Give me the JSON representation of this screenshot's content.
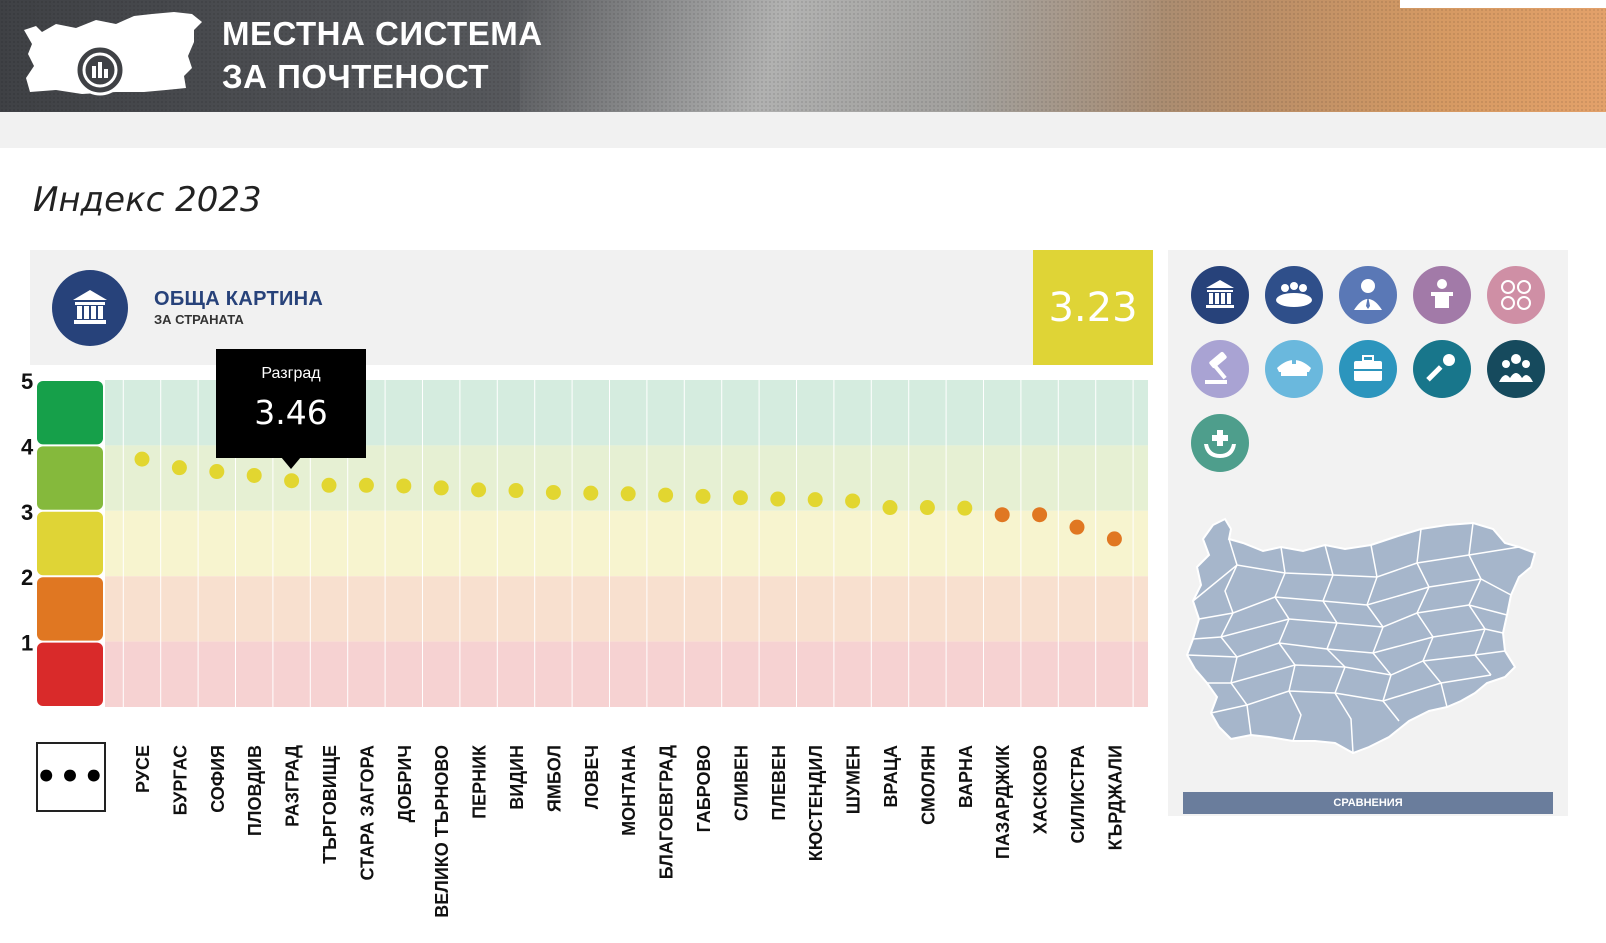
{
  "header": {
    "title_line1": "МЕСТНА СИСТЕМА",
    "title_line2": "ЗА ПОЧТЕНОСТ"
  },
  "page_title": "Индекс 2023",
  "overview": {
    "title": "ОБЩА КАРТИНА",
    "subtitle": "ЗА СТРАНАТА",
    "score": "3.23",
    "icon": "institution-icon"
  },
  "tooltip": {
    "name": "Разград",
    "value": "3.46"
  },
  "colors": {
    "green": "#16a04a",
    "lightgreen": "#85b93c",
    "yellow": "#dfd436",
    "orange": "#e07722",
    "red": "#d92a2a",
    "navy": "#27427a"
  },
  "chart_data": {
    "type": "scatter",
    "ylim": [
      0,
      5
    ],
    "y_ticks": [
      "5",
      "4",
      "3",
      "2",
      "1"
    ],
    "categories": [
      "РУСЕ",
      "БУРГАС",
      "СОФИЯ",
      "ПЛОВДИВ",
      "РАЗГРАД",
      "ТЪРГОВИЩЕ",
      "СТАРА ЗАГОРА",
      "ДОБРИЧ",
      "ВЕЛИКО ТЪРНОВО",
      "ПЕРНИК",
      "ВИДИН",
      "ЯМБОЛ",
      "ЛОВЕЧ",
      "МОНТАНА",
      "БЛАГОЕВГРАД",
      "ГАБРОВО",
      "СЛИВЕН",
      "ПЛЕВЕН",
      "КЮСТЕНДИЛ",
      "ШУМЕН",
      "ВРАЦА",
      "СМОЛЯН",
      "ВАРНА",
      "ПАЗАРДЖИК",
      "ХАСКОВО",
      "СИЛИСТРА",
      "КЪРДЖАЛИ"
    ],
    "values": [
      3.79,
      3.66,
      3.6,
      3.54,
      3.46,
      3.39,
      3.39,
      3.38,
      3.35,
      3.32,
      3.31,
      3.28,
      3.27,
      3.26,
      3.24,
      3.22,
      3.2,
      3.18,
      3.17,
      3.15,
      3.05,
      3.05,
      3.04,
      2.94,
      2.94,
      2.75,
      2.57
    ],
    "bands": [
      {
        "from": 4,
        "to": 5,
        "color": "#16a04a",
        "tint": "#d5ecdf"
      },
      {
        "from": 3,
        "to": 4,
        "color": "#85b93c",
        "tint": "#e6f0d3"
      },
      {
        "from": 2,
        "to": 3,
        "color": "#dfd436",
        "tint": "#f7f4cf"
      },
      {
        "from": 1,
        "to": 2,
        "color": "#e07722",
        "tint": "#f8e0cf"
      },
      {
        "from": 0,
        "to": 1,
        "color": "#d92a2a",
        "tint": "#f6d2d2"
      }
    ],
    "point_colors": {
      "above_3": "#e2d630",
      "below_3": "#e07722"
    }
  },
  "side_panel": {
    "icons": [
      {
        "name": "institution-icon",
        "color": "#27427a"
      },
      {
        "name": "council-meeting-icon",
        "color": "#2f4f8a"
      },
      {
        "name": "mayor-person-icon",
        "color": "#5a78b6"
      },
      {
        "name": "speaker-podium-icon",
        "color": "#a27aa8"
      },
      {
        "name": "group-circles-icon",
        "color": "#cf8fa5"
      },
      {
        "name": "gavel-icon",
        "color": "#a9a3d3"
      },
      {
        "name": "police-cap-icon",
        "color": "#6ab8dd"
      },
      {
        "name": "briefcase-icon",
        "color": "#2c95bd"
      },
      {
        "name": "microphone-icon",
        "color": "#18768b"
      },
      {
        "name": "community-group-icon",
        "color": "#164a5d"
      },
      {
        "name": "health-care-icon",
        "color": "#4e9e8c"
      }
    ],
    "compare_label": "СРАВНЕНИЯ",
    "map_icon": "bulgaria-map-icon"
  },
  "more_label": "•••"
}
